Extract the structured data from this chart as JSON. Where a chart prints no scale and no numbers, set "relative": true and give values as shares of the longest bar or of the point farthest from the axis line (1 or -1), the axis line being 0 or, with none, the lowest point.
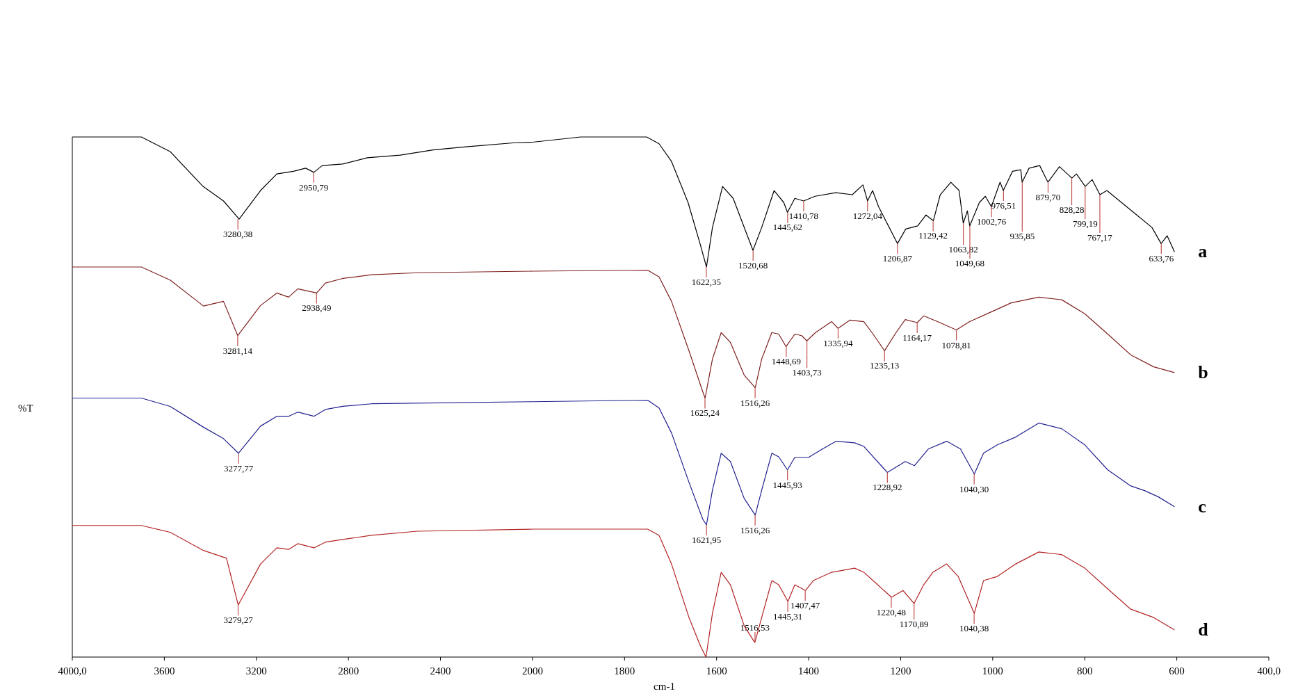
{
  "chart_data": [
    {
      "type": "line",
      "relative": true,
      "ylabel": "%T",
      "marker": "none",
      "line_style": "solid",
      "xlim": [
        4000,
        2000
      ],
      "xticks": [
        {
          "value": 4000,
          "label": "4000,0"
        },
        3600,
        3200,
        2800,
        2400,
        2000
      ],
      "series": [
        {
          "color": "#000000",
          "x": [
            4000,
            3700,
            3575,
            3432,
            3343,
            3275,
            3182,
            3111,
            3039,
            2986,
            2950,
            2914,
            2825,
            2718,
            2575,
            2432,
            2289,
            2075,
            2000
          ],
          "values": [
            1.0,
            1.0,
            0.972,
            0.905,
            0.877,
            0.842,
            0.897,
            0.929,
            0.934,
            0.94,
            0.932,
            0.945,
            0.948,
            0.96,
            0.965,
            0.975,
            0.981,
            0.989,
            0.99
          ]
        },
        {
          "color": "#7f1f1f",
          "x": [
            4000,
            3700,
            3575,
            3430,
            3343,
            3281,
            3182,
            3111,
            3060,
            3020,
            2938,
            2900,
            2825,
            2700,
            2500,
            2000
          ],
          "values": [
            0.75,
            0.75,
            0.725,
            0.675,
            0.684,
            0.618,
            0.676,
            0.7,
            0.692,
            0.708,
            0.7,
            0.719,
            0.728,
            0.735,
            0.739,
            0.742
          ]
        },
        {
          "color": "#1f1f8f",
          "x": [
            4000,
            3700,
            3575,
            3430,
            3343,
            3278,
            3182,
            3111,
            3060,
            3020,
            2950,
            2900,
            2825,
            2700,
            2000
          ],
          "values": [
            0.498,
            0.498,
            0.482,
            0.442,
            0.42,
            0.392,
            0.444,
            0.463,
            0.463,
            0.471,
            0.463,
            0.476,
            0.482,
            0.487,
            0.491
          ]
        },
        {
          "color": "#b22222",
          "x": [
            4000,
            3700,
            3575,
            3430,
            3330,
            3279,
            3182,
            3111,
            3060,
            3020,
            2950,
            2900,
            2825,
            2700,
            2500,
            2000
          ],
          "values": [
            0.253,
            0.253,
            0.24,
            0.205,
            0.19,
            0.1,
            0.179,
            0.21,
            0.207,
            0.218,
            0.21,
            0.221,
            0.226,
            0.234,
            0.242,
            0.246
          ]
        }
      ],
      "annotations": [
        {
          "text": "3280,38",
          "x": 3280.38,
          "y": 0.842
        },
        {
          "text": "2950,79",
          "x": 2950.79,
          "y": 0.932
        },
        {
          "text": "3281,14",
          "x": 3281.14,
          "y": 0.618
        },
        {
          "text": "2938,49",
          "x": 2938.49,
          "y": 0.7
        },
        {
          "text": "3277,77",
          "x": 3277.77,
          "y": 0.392
        },
        {
          "text": "3279,27",
          "x": 3279.27,
          "y": 0.1
        }
      ]
    },
    {
      "type": "line",
      "relative": true,
      "xlabel": "cm-1",
      "legend": false,
      "marker": "none",
      "line_style": "solid",
      "xlim": [
        2000,
        400
      ],
      "xticks": [
        1800,
        1600,
        1400,
        1200,
        1000,
        800,
        600,
        {
          "value": 400,
          "label": "400,0"
        }
      ],
      "series": [
        {
          "name": "a",
          "color": "#000000",
          "x": [
            2000,
            1895,
            1752,
            1725,
            1698,
            1662,
            1636,
            1622,
            1609,
            1587,
            1564,
            1521,
            1502,
            1475,
            1454,
            1446,
            1430,
            1411,
            1386,
            1341,
            1305,
            1282,
            1272,
            1261,
            1248,
            1207,
            1189,
            1163,
            1145,
            1129,
            1114,
            1091,
            1073,
            1064,
            1055,
            1050,
            1029,
            1016,
            1003,
            984,
            977,
            957,
            939,
            936,
            921,
            898,
            880,
            855,
            828,
            818,
            799,
            784,
            767,
            752,
            698,
            654,
            634,
            621,
            605
          ],
          "values": [
            0.99,
            1.0,
            1.0,
            0.987,
            0.953,
            0.874,
            0.795,
            0.75,
            0.826,
            0.905,
            0.882,
            0.782,
            0.826,
            0.897,
            0.874,
            0.855,
            0.882,
            0.877,
            0.886,
            0.893,
            0.889,
            0.908,
            0.877,
            0.897,
            0.866,
            0.795,
            0.823,
            0.829,
            0.85,
            0.839,
            0.889,
            0.913,
            0.897,
            0.834,
            0.858,
            0.829,
            0.874,
            0.886,
            0.866,
            0.913,
            0.897,
            0.934,
            0.937,
            0.913,
            0.94,
            0.945,
            0.913,
            0.943,
            0.921,
            0.929,
            0.905,
            0.918,
            0.889,
            0.897,
            0.858,
            0.826,
            0.795,
            0.81,
            0.779
          ]
        },
        {
          "name": "b",
          "color": "#7f1f1f",
          "x": [
            2000,
            1750,
            1725,
            1698,
            1660,
            1630,
            1625,
            1609,
            1590,
            1570,
            1540,
            1516,
            1502,
            1480,
            1465,
            1449,
            1430,
            1415,
            1404,
            1385,
            1350,
            1336,
            1310,
            1280,
            1260,
            1235,
            1210,
            1190,
            1164,
            1150,
            1120,
            1079,
            1050,
            1000,
            960,
            900,
            850,
            800,
            750,
            700,
            650,
            605
          ],
          "values": [
            0.742,
            0.744,
            0.731,
            0.684,
            0.589,
            0.51,
            0.498,
            0.573,
            0.624,
            0.605,
            0.542,
            0.518,
            0.573,
            0.624,
            0.621,
            0.597,
            0.621,
            0.618,
            0.608,
            0.624,
            0.645,
            0.632,
            0.648,
            0.645,
            0.621,
            0.589,
            0.624,
            0.649,
            0.643,
            0.656,
            0.645,
            0.629,
            0.645,
            0.665,
            0.681,
            0.692,
            0.687,
            0.66,
            0.621,
            0.581,
            0.558,
            0.547
          ]
        },
        {
          "name": "c",
          "color": "#1f1f8f",
          "x": [
            2000,
            1750,
            1725,
            1698,
            1660,
            1630,
            1622,
            1609,
            1590,
            1570,
            1540,
            1516,
            1502,
            1480,
            1465,
            1446,
            1430,
            1400,
            1370,
            1340,
            1300,
            1280,
            1229,
            1190,
            1170,
            1140,
            1100,
            1070,
            1040,
            1020,
            990,
            950,
            900,
            850,
            800,
            750,
            700,
            670,
            640,
            605
          ],
          "values": [
            0.491,
            0.494,
            0.479,
            0.431,
            0.336,
            0.265,
            0.254,
            0.321,
            0.392,
            0.376,
            0.305,
            0.273,
            0.321,
            0.392,
            0.385,
            0.36,
            0.384,
            0.384,
            0.4,
            0.415,
            0.412,
            0.405,
            0.355,
            0.376,
            0.368,
            0.4,
            0.415,
            0.4,
            0.352,
            0.392,
            0.408,
            0.423,
            0.45,
            0.439,
            0.408,
            0.36,
            0.329,
            0.32,
            0.308,
            0.289
          ]
        },
        {
          "name": "d",
          "color": "#b22222",
          "x": [
            2000,
            1750,
            1725,
            1698,
            1660,
            1635,
            1623,
            1609,
            1590,
            1570,
            1540,
            1517,
            1502,
            1480,
            1465,
            1445,
            1430,
            1407,
            1390,
            1350,
            1300,
            1280,
            1250,
            1220,
            1195,
            1171,
            1150,
            1130,
            1100,
            1075,
            1040,
            1020,
            990,
            950,
            900,
            850,
            800,
            750,
            700,
            650,
            605
          ],
          "values": [
            0.246,
            0.246,
            0.234,
            0.179,
            0.076,
            0.021,
            0.0,
            0.084,
            0.163,
            0.139,
            0.06,
            0.028,
            0.076,
            0.147,
            0.139,
            0.107,
            0.139,
            0.128,
            0.147,
            0.163,
            0.171,
            0.163,
            0.139,
            0.115,
            0.128,
            0.103,
            0.139,
            0.163,
            0.179,
            0.155,
            0.084,
            0.147,
            0.155,
            0.179,
            0.202,
            0.197,
            0.171,
            0.131,
            0.092,
            0.076,
            0.052
          ]
        }
      ],
      "annotations": [
        {
          "text": "1622,35",
          "x": 1622.35,
          "y": 0.75
        },
        {
          "text": "1520,68",
          "x": 1520.68,
          "y": 0.782
        },
        {
          "text": "1445,62",
          "x": 1445.62,
          "y": 0.855
        },
        {
          "text": "1410,78",
          "x": 1410.78,
          "y": 0.877
        },
        {
          "text": "1272,04",
          "x": 1272.04,
          "y": 0.877
        },
        {
          "text": "1206,87",
          "x": 1206.87,
          "y": 0.795
        },
        {
          "text": "1129,42",
          "x": 1129.42,
          "y": 0.839
        },
        {
          "text": "1063,82",
          "x": 1063.82,
          "y": 0.834
        },
        {
          "text": "1049,68",
          "x": 1049.68,
          "y": 0.829
        },
        {
          "text": "1002,76",
          "x": 1002.76,
          "y": 0.866
        },
        {
          "text": "976,51",
          "x": 976.51,
          "y": 0.897
        },
        {
          "text": "935,85",
          "x": 935.85,
          "y": 0.913
        },
        {
          "text": "879,70",
          "x": 879.7,
          "y": 0.913
        },
        {
          "text": "828,28",
          "x": 828.28,
          "y": 0.921
        },
        {
          "text": "799,19",
          "x": 799.19,
          "y": 0.905
        },
        {
          "text": "767,17",
          "x": 767.17,
          "y": 0.889
        },
        {
          "text": "633,76",
          "x": 633.76,
          "y": 0.795
        },
        {
          "text": "1625,24",
          "x": 1625.24,
          "y": 0.498
        },
        {
          "text": "1516,26",
          "x": 1516.26,
          "y": 0.518
        },
        {
          "text": "1448,69",
          "x": 1448.69,
          "y": 0.597
        },
        {
          "text": "1403,73",
          "x": 1403.73,
          "y": 0.608
        },
        {
          "text": "1335,94",
          "x": 1335.94,
          "y": 0.632
        },
        {
          "text": "1235,13",
          "x": 1235.13,
          "y": 0.589
        },
        {
          "text": "1164,17",
          "x": 1164.17,
          "y": 0.643
        },
        {
          "text": "1078,81",
          "x": 1078.81,
          "y": 0.629
        },
        {
          "text": "1621,95",
          "x": 1621.95,
          "y": 0.254
        },
        {
          "text": "1516,26",
          "x": 1516.26,
          "y": 0.273
        },
        {
          "text": "1445,93",
          "x": 1445.93,
          "y": 0.36
        },
        {
          "text": "1228,92",
          "x": 1228.92,
          "y": 0.355
        },
        {
          "text": "1040,30",
          "x": 1040.3,
          "y": 0.352
        },
        {
          "text": "1516,53",
          "x": 1516.53,
          "y": 0.028
        },
        {
          "text": "1445,31",
          "x": 1445.31,
          "y": 0.107
        },
        {
          "text": "1407,47",
          "x": 1407.47,
          "y": 0.128
        },
        {
          "text": "1220,48",
          "x": 1220.48,
          "y": 0.115
        },
        {
          "text": "1170,89",
          "x": 1170.89,
          "y": 0.103
        },
        {
          "text": "1040,38",
          "x": 1040.38,
          "y": 0.084
        }
      ]
    }
  ]
}
